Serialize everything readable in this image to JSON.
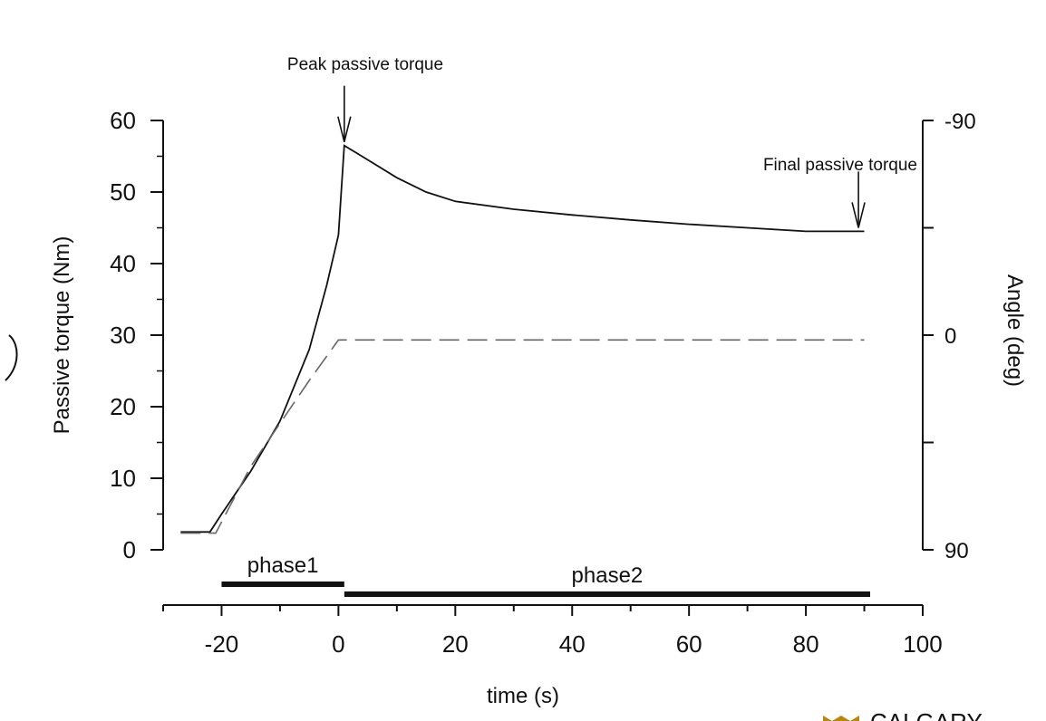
{
  "chart_data": {
    "type": "line",
    "xlabel": "time  (s)",
    "ylabel": "Passive torque (Nm)",
    "y2label": "Angle (deg)",
    "xlim": [
      -30,
      100
    ],
    "ylim": [
      0,
      60
    ],
    "y2lim": [
      90,
      -90
    ],
    "x_ticks": [
      -20,
      0,
      20,
      40,
      60,
      80,
      100
    ],
    "y_ticks": [
      0,
      10,
      20,
      30,
      40,
      50,
      60
    ],
    "y2_ticks": [
      -90,
      0,
      90
    ],
    "y2_tick_labels": [
      "-90",
      "0",
      "90"
    ],
    "grid": false,
    "series": [
      {
        "style": "solid",
        "x": [
          -27,
          -22,
          -20,
          -15,
          -10,
          -5,
          -2,
          0,
          1,
          3,
          5,
          10,
          15,
          20,
          30,
          40,
          50,
          60,
          70,
          80,
          90
        ],
        "y": [
          2.5,
          2.5,
          5,
          11,
          18,
          28,
          37,
          44,
          56.5,
          55.5,
          54.5,
          52,
          50,
          48.7,
          47.6,
          46.8,
          46.1,
          45.5,
          45,
          44.5,
          44.5
        ]
      },
      {
        "style": "dashed",
        "axis": "right",
        "x": [
          -27,
          -21,
          -15,
          -10,
          -5,
          0,
          10,
          20,
          40,
          60,
          80,
          90
        ],
        "y": [
          83,
          83,
          55,
          37,
          19,
          2,
          2,
          2,
          2,
          2,
          2,
          2
        ]
      }
    ],
    "annotations": [
      {
        "text": "Peak passive torque",
        "x": 1,
        "y": 56.5
      },
      {
        "text": "Final passive torque",
        "x": 89,
        "y": 44.5
      }
    ],
    "phases": [
      {
        "label": "phase1",
        "x_start": -20,
        "x_end": 1
      },
      {
        "label": "phase2",
        "x_start": 1,
        "x_end": 91
      }
    ]
  },
  "logo": {
    "text": "CALGARY"
  }
}
